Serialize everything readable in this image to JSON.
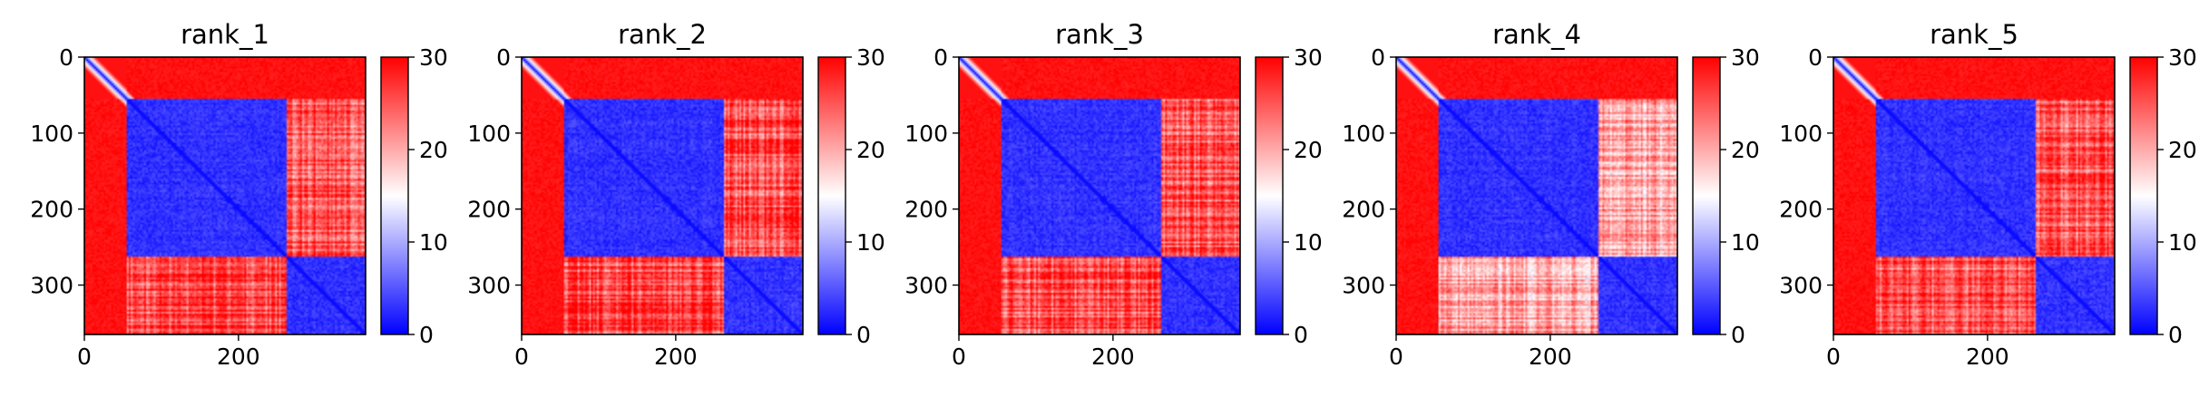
{
  "colormap": {
    "name": "bwr",
    "low_color": "#0000ff",
    "mid_color": "#ffffff",
    "high_color": "#ff0000"
  },
  "chart_data": [
    {
      "type": "heatmap",
      "title": "rank_1",
      "matrix_size": 365,
      "domain_boundaries": [
        55,
        262
      ],
      "x_ticks": [
        0,
        200
      ],
      "y_ticks": [
        0,
        100,
        200,
        300
      ],
      "colorbar": {
        "ticks": [
          0,
          10,
          20,
          30
        ],
        "range": [
          0,
          30
        ]
      },
      "blocks": {
        "domain1_mean": 2.5,
        "domain2_mean": 2.5,
        "inter_domain_mean": 25.5,
        "disordered_mean": 29.0
      }
    },
    {
      "type": "heatmap",
      "title": "rank_2",
      "matrix_size": 365,
      "domain_boundaries": [
        55,
        262
      ],
      "x_ticks": [
        0,
        200
      ],
      "y_ticks": [
        0,
        100,
        200,
        300
      ],
      "colorbar": {
        "ticks": [
          0,
          10,
          20,
          30
        ],
        "range": [
          0,
          30
        ]
      },
      "blocks": {
        "domain1_mean": 2.5,
        "domain2_mean": 2.5,
        "inter_domain_mean": 25.5,
        "disordered_mean": 29.0
      }
    },
    {
      "type": "heatmap",
      "title": "rank_3",
      "matrix_size": 365,
      "domain_boundaries": [
        55,
        262
      ],
      "x_ticks": [
        0,
        200
      ],
      "y_ticks": [
        0,
        100,
        200,
        300
      ],
      "colorbar": {
        "ticks": [
          0,
          10,
          20,
          30
        ],
        "range": [
          0,
          30
        ]
      },
      "blocks": {
        "domain1_mean": 2.5,
        "domain2_mean": 2.5,
        "inter_domain_mean": 25.0,
        "disordered_mean": 29.0
      }
    },
    {
      "type": "heatmap",
      "title": "rank_4",
      "matrix_size": 365,
      "domain_boundaries": [
        55,
        262
      ],
      "x_ticks": [
        0,
        200
      ],
      "y_ticks": [
        0,
        100,
        200,
        300
      ],
      "colorbar": {
        "ticks": [
          0,
          10,
          20,
          30
        ],
        "range": [
          0,
          30
        ]
      },
      "blocks": {
        "domain1_mean": 2.5,
        "domain2_mean": 2.5,
        "inter_domain_mean": 20.0,
        "disordered_mean": 29.0
      }
    },
    {
      "type": "heatmap",
      "title": "rank_5",
      "matrix_size": 365,
      "domain_boundaries": [
        55,
        262
      ],
      "x_ticks": [
        0,
        200
      ],
      "y_ticks": [
        0,
        100,
        200,
        300
      ],
      "colorbar": {
        "ticks": [
          0,
          10,
          20,
          30
        ],
        "range": [
          0,
          30
        ]
      },
      "blocks": {
        "domain1_mean": 2.5,
        "domain2_mean": 2.5,
        "inter_domain_mean": 24.5,
        "disordered_mean": 29.0
      }
    }
  ]
}
